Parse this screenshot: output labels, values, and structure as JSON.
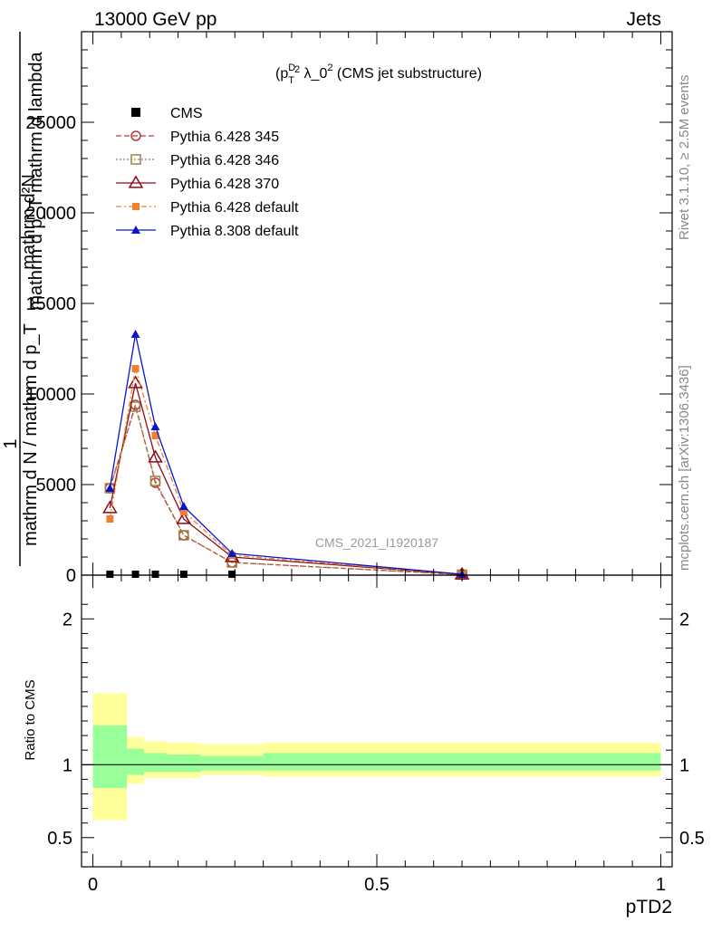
{
  "header": {
    "left": "13000 GeV pp",
    "right": "Jets"
  },
  "side_labels": {
    "rivet": "Rivet 3.1.10, ≥ 2.5M events",
    "mcplots": "mcplots.cern.ch [arXiv:1306.3436]"
  },
  "main_panel": {
    "title": "(p_T^D)^2 λ_0^2 (CMS jet substructure)",
    "watermark": "CMS_2021_I1920187",
    "ylabel_lines": [
      "mathrm d²N",
      "mathrm d p_T mathrm d lambda",
      "1",
      "mathrm d N / mathrm d p_T"
    ],
    "ylim": [
      0,
      30000
    ],
    "yticks": [
      0,
      5000,
      10000,
      15000,
      20000,
      25000
    ]
  },
  "ratio_panel": {
    "ylabel": "Ratio to CMS",
    "ylim": [
      0.3,
      2.3
    ],
    "yticks": [
      0.5,
      1,
      2
    ],
    "ytick_labels": [
      "0.5",
      "1",
      "2"
    ]
  },
  "xaxis": {
    "label": "pTD2",
    "xlim": [
      -0.02,
      1.02
    ],
    "ticks": [
      0,
      0.5,
      1
    ],
    "tick_labels": [
      "0",
      "0.5",
      "1"
    ]
  },
  "chart_data": {
    "type": "line",
    "x": [
      0.03,
      0.075,
      0.11,
      0.16,
      0.245,
      0.65
    ],
    "series": [
      {
        "name": "CMS",
        "color": "#000000",
        "marker": "square",
        "dash": "none",
        "values": [
          0,
          0,
          0,
          0,
          0,
          0
        ]
      },
      {
        "name": "Pythia 6.428 345",
        "color": "#b83a3a",
        "marker": "circle-open",
        "dash": "6,3",
        "values": [
          4800,
          9400,
          5100,
          2200,
          700,
          30
        ]
      },
      {
        "name": "Pythia 6.428 346",
        "color": "#a08040",
        "marker": "square-open",
        "dash": "2,2",
        "values": [
          4800,
          9300,
          5200,
          2200,
          700,
          30
        ]
      },
      {
        "name": "Pythia 6.428 370",
        "color": "#8b0a14",
        "marker": "triangle-open",
        "dash": "none",
        "values": [
          3700,
          10600,
          6500,
          3100,
          1000,
          40
        ]
      },
      {
        "name": "Pythia 6.428 default",
        "color": "#f08030",
        "marker": "square-filled",
        "dash": "6,3,2,3",
        "values": [
          3100,
          11400,
          7700,
          3500,
          1100,
          40
        ]
      },
      {
        "name": "Pythia 8.308 default",
        "color": "#0a14cc",
        "marker": "triangle-filled",
        "dash": "none",
        "values": [
          4800,
          13300,
          8200,
          3800,
          1200,
          50
        ]
      }
    ],
    "ratio_bands": {
      "edges": [
        0,
        0.06,
        0.09,
        0.13,
        0.19,
        0.3,
        1.0
      ],
      "yellow_low": [
        0.62,
        0.87,
        0.91,
        0.91,
        0.93,
        0.92
      ],
      "yellow_high": [
        1.49,
        1.19,
        1.16,
        1.15,
        1.14,
        1.15
      ],
      "green_low": [
        0.84,
        0.93,
        0.95,
        0.95,
        0.96,
        0.96
      ],
      "green_high": [
        1.27,
        1.11,
        1.08,
        1.07,
        1.06,
        1.08
      ],
      "yellow_color": "#ffff99",
      "green_color": "#99ff99"
    }
  }
}
